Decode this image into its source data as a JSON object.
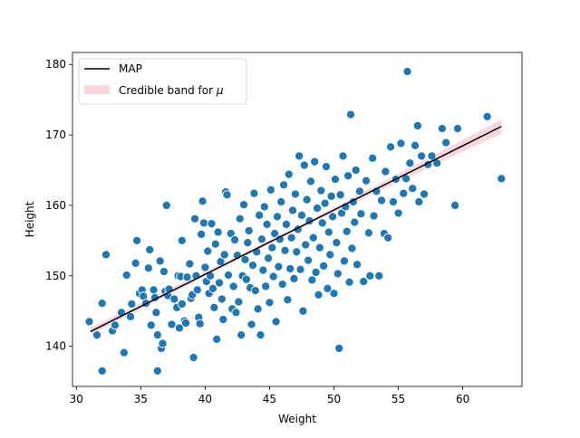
{
  "chart_data": {
    "type": "scatter",
    "title": "",
    "xlabel": "Weight",
    "ylabel": "Height",
    "xlim": [
      29.7,
      64.6
    ],
    "ylim": [
      134.3,
      181.7
    ],
    "xticks": [
      30,
      35,
      40,
      45,
      50,
      55,
      60
    ],
    "yticks": [
      140,
      150,
      160,
      170,
      180
    ],
    "grid": false,
    "legend": {
      "position": "top-left",
      "entries": [
        {
          "label": "MAP",
          "kind": "line"
        },
        {
          "label_prefix": "Credible band for ",
          "label_symbol": "μ",
          "kind": "band"
        }
      ]
    },
    "colors": {
      "points": "#1f77b4",
      "point_edge": "#ffffff",
      "map_line": "#000000",
      "band": "#f7c6cf"
    },
    "map_line": {
      "x": [
        31.1,
        63.0
      ],
      "y": [
        142.1,
        171.2
      ]
    },
    "credible_band": {
      "x": [
        31.1,
        47.0,
        63.0
      ],
      "lower": [
        141.6,
        156.4,
        170.2
      ],
      "upper": [
        142.7,
        156.8,
        172.2
      ]
    },
    "series": [
      {
        "points": [
          [
            31.0,
            143.5
          ],
          [
            31.6,
            141.6
          ],
          [
            32.0,
            146.1
          ],
          [
            32.0,
            136.5
          ],
          [
            32.3,
            153.0
          ],
          [
            32.8,
            142.2
          ],
          [
            33.0,
            143.0
          ],
          [
            33.5,
            144.8
          ],
          [
            33.7,
            139.1
          ],
          [
            33.9,
            150.1
          ],
          [
            34.2,
            144.2
          ],
          [
            34.3,
            146.0
          ],
          [
            34.6,
            151.8
          ],
          [
            34.7,
            155.0
          ],
          [
            34.9,
            147.5
          ],
          [
            35.1,
            148.0
          ],
          [
            35.2,
            147.1
          ],
          [
            35.4,
            146.1
          ],
          [
            35.6,
            151.1
          ],
          [
            35.7,
            153.7
          ],
          [
            35.8,
            143.0
          ],
          [
            36.0,
            148.0
          ],
          [
            36.1,
            146.9
          ],
          [
            36.2,
            144.8
          ],
          [
            36.3,
            141.6
          ],
          [
            36.3,
            136.5
          ],
          [
            36.5,
            152.1
          ],
          [
            36.6,
            139.7
          ],
          [
            36.7,
            140.4
          ],
          [
            36.8,
            150.6
          ],
          [
            36.9,
            147.8
          ],
          [
            37.0,
            160.0
          ],
          [
            37.1,
            147.2
          ],
          [
            37.2,
            148.1
          ],
          [
            37.4,
            143.1
          ],
          [
            37.6,
            146.7
          ],
          [
            37.8,
            145.5
          ],
          [
            37.9,
            150.0
          ],
          [
            38.0,
            142.6
          ],
          [
            38.1,
            149.9
          ],
          [
            38.2,
            155.0
          ],
          [
            38.2,
            146.0
          ],
          [
            38.4,
            143.6
          ],
          [
            38.5,
            143.3
          ],
          [
            38.6,
            149.8
          ],
          [
            38.8,
            151.7
          ],
          [
            38.9,
            146.8
          ],
          [
            39.0,
            147.3
          ],
          [
            39.1,
            138.4
          ],
          [
            39.2,
            158.1
          ],
          [
            39.3,
            150.0
          ],
          [
            39.4,
            148.0
          ],
          [
            39.5,
            144.1
          ],
          [
            39.6,
            143.2
          ],
          [
            39.7,
            155.9
          ],
          [
            39.8,
            160.6
          ],
          [
            39.9,
            157.5
          ],
          [
            40.0,
            151.2
          ],
          [
            40.1,
            149.2
          ],
          [
            40.2,
            153.5
          ],
          [
            40.3,
            147.5
          ],
          [
            40.4,
            150.0
          ],
          [
            40.5,
            157.4
          ],
          [
            40.6,
            148.2
          ],
          [
            40.7,
            145.5
          ],
          [
            40.8,
            154.5
          ],
          [
            40.9,
            141.0
          ],
          [
            41.0,
            156.2
          ],
          [
            41.1,
            149.0
          ],
          [
            41.2,
            152.0
          ],
          [
            41.3,
            146.7
          ],
          [
            41.4,
            143.8
          ],
          [
            41.5,
            153.0
          ],
          [
            41.6,
            161.9
          ],
          [
            41.7,
            161.5
          ],
          [
            41.8,
            150.1
          ],
          [
            42.0,
            156.0
          ],
          [
            42.1,
            145.3
          ],
          [
            42.2,
            148.5
          ],
          [
            42.3,
            155.1
          ],
          [
            42.4,
            144.8
          ],
          [
            42.5,
            152.9
          ],
          [
            42.6,
            146.3
          ],
          [
            42.7,
            158.1
          ],
          [
            42.8,
            141.6
          ],
          [
            42.9,
            150.0
          ],
          [
            43.0,
            160.1
          ],
          [
            43.1,
            152.3
          ],
          [
            43.2,
            149.5
          ],
          [
            43.3,
            154.7
          ],
          [
            43.4,
            156.4
          ],
          [
            43.5,
            148.3
          ],
          [
            43.6,
            143.1
          ],
          [
            43.7,
            151.5
          ],
          [
            43.8,
            161.7
          ],
          [
            43.9,
            147.9
          ],
          [
            44.0,
            153.4
          ],
          [
            44.1,
            145.3
          ],
          [
            44.2,
            158.6
          ],
          [
            44.3,
            141.6
          ],
          [
            44.4,
            155.2
          ],
          [
            44.5,
            150.8
          ],
          [
            44.6,
            159.8
          ],
          [
            44.7,
            148.5
          ],
          [
            44.8,
            157.3
          ],
          [
            44.9,
            152.5
          ],
          [
            45.0,
            146.2
          ],
          [
            45.1,
            162.2
          ],
          [
            45.2,
            154.0
          ],
          [
            45.3,
            149.9
          ],
          [
            45.4,
            156.0
          ],
          [
            45.5,
            143.5
          ],
          [
            45.6,
            158.4
          ],
          [
            45.7,
            151.3
          ],
          [
            45.8,
            155.2
          ],
          [
            45.9,
            160.5
          ],
          [
            46.0,
            148.8
          ],
          [
            46.1,
            162.9
          ],
          [
            46.2,
            153.6
          ],
          [
            46.3,
            157.3
          ],
          [
            46.4,
            146.6
          ],
          [
            46.5,
            164.4
          ],
          [
            46.6,
            151.0
          ],
          [
            46.7,
            155.4
          ],
          [
            46.8,
            159.3
          ],
          [
            46.9,
            149.6
          ],
          [
            47.0,
            161.6
          ],
          [
            47.1,
            153.4
          ],
          [
            47.2,
            156.6
          ],
          [
            47.3,
            167.0
          ],
          [
            47.4,
            150.9
          ],
          [
            47.5,
            158.6
          ],
          [
            47.6,
            145.0
          ],
          [
            47.7,
            165.7
          ],
          [
            47.8,
            154.4
          ],
          [
            47.9,
            160.8
          ],
          [
            48.0,
            152.2
          ],
          [
            48.1,
            157.8
          ],
          [
            48.2,
            163.4
          ],
          [
            48.3,
            149.4
          ],
          [
            48.4,
            155.4
          ],
          [
            48.5,
            166.2
          ],
          [
            48.6,
            150.5
          ],
          [
            48.7,
            159.6
          ],
          [
            48.8,
            147.3
          ],
          [
            48.9,
            154.0
          ],
          [
            49.0,
            162.1
          ],
          [
            49.1,
            157.5
          ],
          [
            49.2,
            151.4
          ],
          [
            49.3,
            160.3
          ],
          [
            49.4,
            165.5
          ],
          [
            49.5,
            148.2
          ],
          [
            49.6,
            156.2
          ],
          [
            49.7,
            153.0
          ],
          [
            49.8,
            161.3
          ],
          [
            49.9,
            158.4
          ],
          [
            50.0,
            147.5
          ],
          [
            50.1,
            163.7
          ],
          [
            50.2,
            154.7
          ],
          [
            50.3,
            150.3
          ],
          [
            50.4,
            139.7
          ],
          [
            50.5,
            161.5
          ],
          [
            50.6,
            158.9
          ],
          [
            50.7,
            167.0
          ],
          [
            50.8,
            152.1
          ],
          [
            50.9,
            159.8
          ],
          [
            51.0,
            156.3
          ],
          [
            51.1,
            164.2
          ],
          [
            51.2,
            149.1
          ],
          [
            51.3,
            172.9
          ],
          [
            51.4,
            153.9
          ],
          [
            51.5,
            160.5
          ],
          [
            51.6,
            157.6
          ],
          [
            51.7,
            165.0
          ],
          [
            51.8,
            151.6
          ],
          [
            52.0,
            162.0
          ],
          [
            52.1,
            158.8
          ],
          [
            52.3,
            149.2
          ],
          [
            52.5,
            163.5
          ],
          [
            52.7,
            156.1
          ],
          [
            52.8,
            150.0
          ],
          [
            53.0,
            166.7
          ],
          [
            53.1,
            158.5
          ],
          [
            53.3,
            162.0
          ],
          [
            53.5,
            150.0
          ],
          [
            53.7,
            160.7
          ],
          [
            53.9,
            156.0
          ],
          [
            54.0,
            164.8
          ],
          [
            54.2,
            155.4
          ],
          [
            54.4,
            168.3
          ],
          [
            54.6,
            160.5
          ],
          [
            54.8,
            163.7
          ],
          [
            55.0,
            158.9
          ],
          [
            55.2,
            168.8
          ],
          [
            55.4,
            161.7
          ],
          [
            55.6,
            163.8
          ],
          [
            55.7,
            179.0
          ],
          [
            55.9,
            166.0
          ],
          [
            56.1,
            162.4
          ],
          [
            56.3,
            168.5
          ],
          [
            56.5,
            171.3
          ],
          [
            56.6,
            160.5
          ],
          [
            56.8,
            167.0
          ],
          [
            57.0,
            161.6
          ],
          [
            57.3,
            165.8
          ],
          [
            57.6,
            167.0
          ],
          [
            58.0,
            166.0
          ],
          [
            58.4,
            170.9
          ],
          [
            58.7,
            168.9
          ],
          [
            59.4,
            160.0
          ],
          [
            59.6,
            170.9
          ],
          [
            61.9,
            172.6
          ],
          [
            63.0,
            163.8
          ]
        ]
      }
    ]
  }
}
